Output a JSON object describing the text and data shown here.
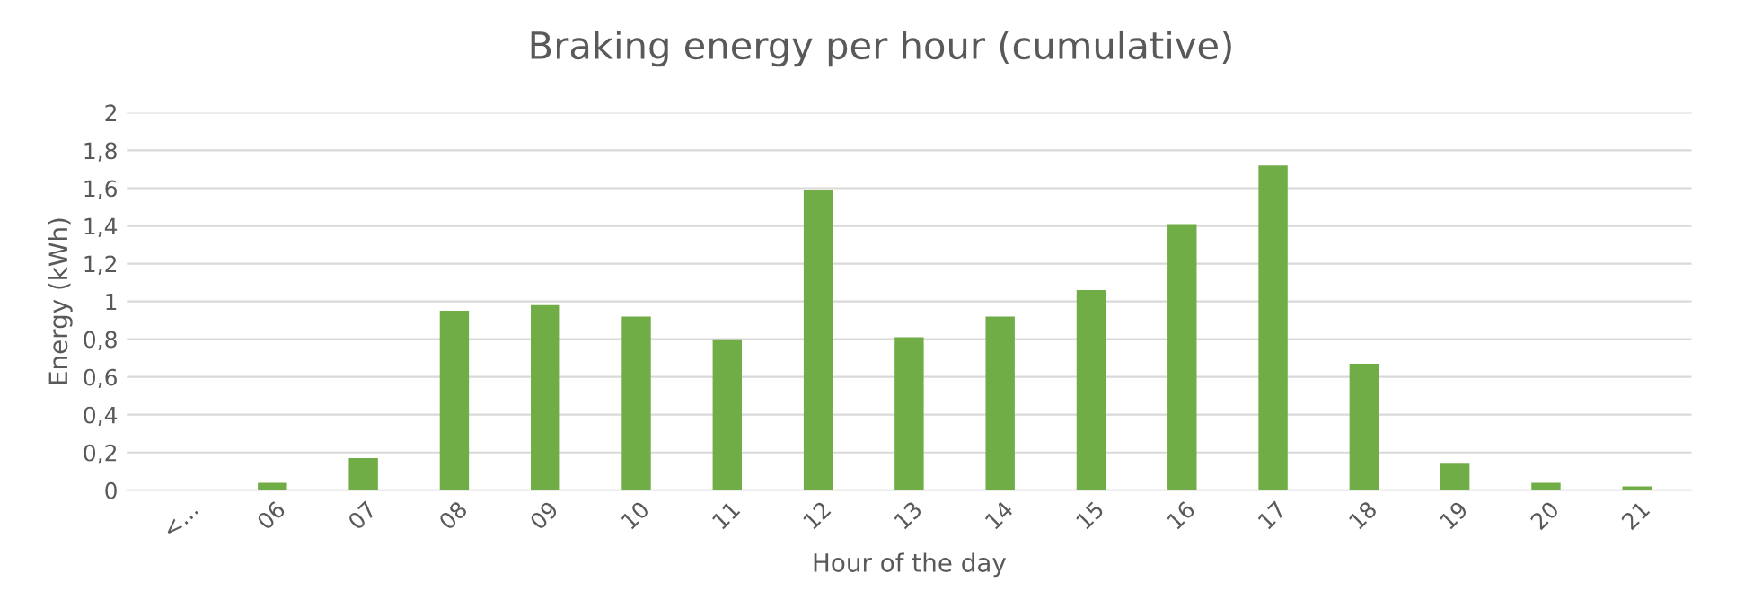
{
  "chart_data": {
    "type": "bar",
    "title": "Braking energy per hour (cumulative)",
    "xlabel": "Hour of the day",
    "ylabel": "Energy (kWh)",
    "categories": [
      "<...",
      "06",
      "07",
      "08",
      "09",
      "10",
      "11",
      "12",
      "13",
      "14",
      "15",
      "16",
      "17",
      "18",
      "19",
      "20",
      "21"
    ],
    "values": [
      0,
      0.04,
      0.17,
      0.95,
      0.98,
      0.92,
      0.8,
      1.59,
      0.81,
      0.92,
      1.06,
      1.41,
      1.72,
      0.67,
      0.14,
      0.04,
      0.02
    ],
    "color": "#70ad47",
    "ylim": [
      0,
      2
    ],
    "yticks": [
      0,
      {
        "value": 0.2,
        "label": "0,2"
      },
      {
        "value": 0.4,
        "label": "0,4"
      },
      {
        "value": 0.6,
        "label": "0,6"
      },
      {
        "value": 0.8,
        "label": "0,8"
      },
      1,
      {
        "value": 1.2,
        "label": "1,2"
      },
      {
        "value": 1.4,
        "label": "1,4"
      },
      {
        "value": 1.6,
        "label": "1,6"
      },
      {
        "value": 1.8,
        "label": "1,8"
      },
      2
    ],
    "grid": "y",
    "legend": false
  }
}
